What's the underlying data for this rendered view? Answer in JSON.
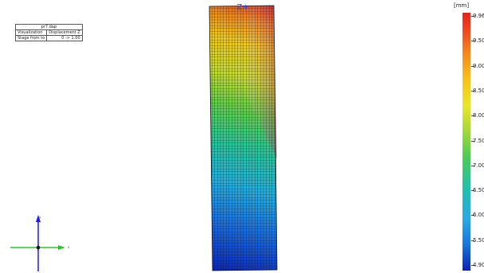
{
  "info_panel": {
    "title": "pr7.dap",
    "rows": [
      {
        "label": "Visualization",
        "value": "Displacement Z"
      },
      {
        "label": "Stage from to",
        "value": "0 -> 1.00"
      }
    ]
  },
  "view_marker": "Z+",
  "colorbar": {
    "unit": "[mm]",
    "ticks": [
      "9.96",
      "9.50",
      "9.00",
      "8.50",
      "8.00",
      "7.50",
      "7.00",
      "6.50",
      "6.00",
      "5.50",
      "4.90"
    ]
  },
  "axes": {
    "x_label": "x",
    "y_label": "y"
  },
  "colors": {
    "x_axis": "#22cc22",
    "y_axis": "#1a1aff",
    "origin": "#111111",
    "mesh_line": "#1a1a1a"
  }
}
